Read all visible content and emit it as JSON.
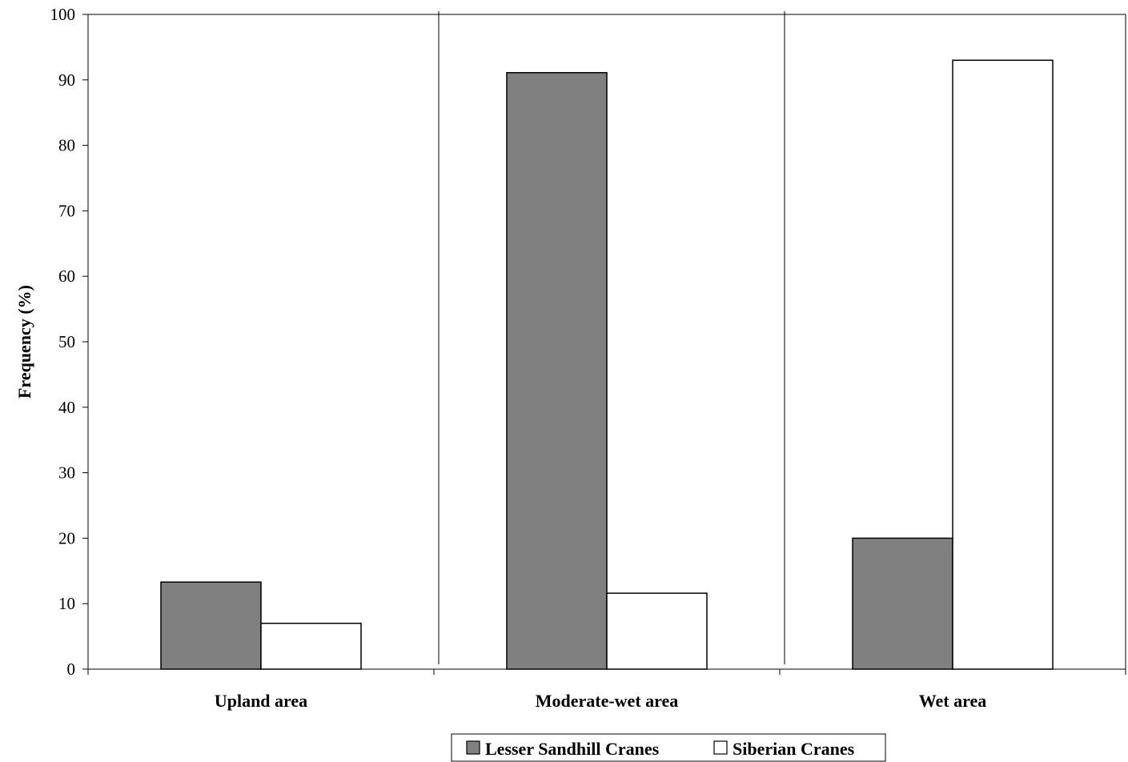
{
  "chart_data": {
    "type": "bar",
    "title": "",
    "xlabel": "",
    "ylabel": "Frequency (%)",
    "ylim": [
      0,
      100
    ],
    "yticks": [
      0,
      10,
      20,
      30,
      40,
      50,
      60,
      70,
      80,
      90,
      100
    ],
    "categories": [
      "Upland area",
      "Moderate-wet area",
      "Wet area"
    ],
    "series": [
      {
        "name": "Lesser Sandhill Cranes",
        "color": "#808080",
        "values": [
          13.3,
          91.1,
          20.0
        ]
      },
      {
        "name": "Siberian Cranes",
        "color": "#ffffff",
        "values": [
          7.0,
          11.6,
          93.0
        ]
      }
    ],
    "grid": false,
    "legend": "bottom-center"
  }
}
